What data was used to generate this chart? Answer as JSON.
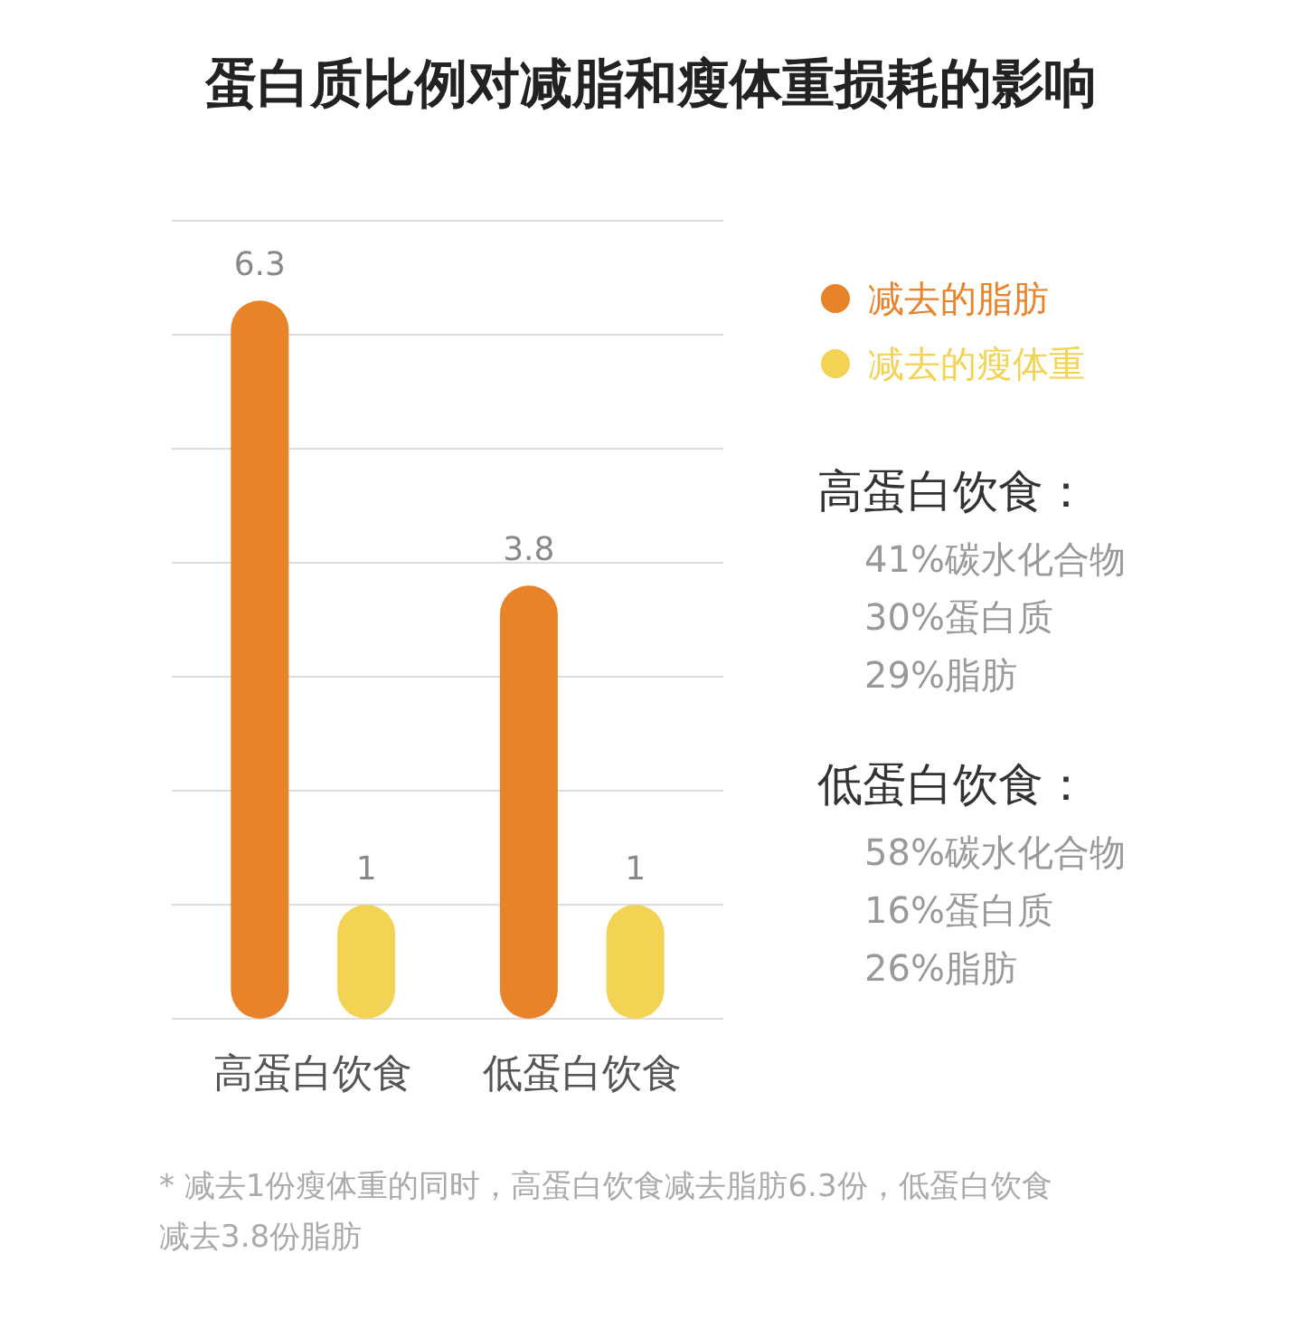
{
  "chart_data": {
    "type": "bar",
    "title": "蛋白质比例对减脂和瘦体重损耗的影响",
    "categories": [
      "高蛋白饮食",
      "低蛋白饮食"
    ],
    "series": [
      {
        "name": "减去的脂肪",
        "color": "#e8832a",
        "values": [
          6.3,
          3.8
        ]
      },
      {
        "name": "减去的瘦体重",
        "color": "#f3d354",
        "values": [
          1,
          1
        ]
      }
    ],
    "ylim": [
      0,
      7
    ],
    "yticks": [
      {
        "value": 0,
        "label": null
      },
      {
        "value": 1,
        "label": null
      },
      {
        "value": 2,
        "label": null
      },
      {
        "value": 3,
        "label": null
      },
      {
        "value": 4,
        "label": null
      },
      {
        "value": 5,
        "label": null
      },
      {
        "value": 6,
        "label": null
      },
      {
        "value": 7,
        "label": null
      }
    ],
    "tick_labels": "x",
    "grid": "y",
    "legend": "right",
    "data_labels": true,
    "annotations": [
      "高蛋白饮食：",
      "41%碳水化合物",
      "30%蛋白质",
      "29%脂肪",
      "低蛋白饮食：",
      "58%碳水化合物",
      "16%蛋白质",
      "26%脂肪",
      "* 减去1份瘦体重的同时，高蛋白饮食减去脂肪6.3份，低蛋白饮食减去3.8份脂肪"
    ]
  }
}
